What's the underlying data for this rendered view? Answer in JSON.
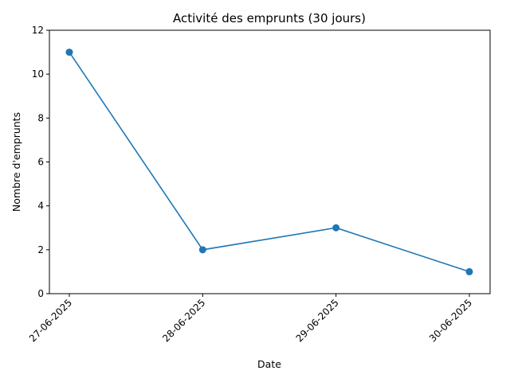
{
  "chart_data": {
    "type": "line",
    "title": "Activité des emprunts (30 jours)",
    "xlabel": "Date",
    "ylabel": "Nombre d'emprunts",
    "categories": [
      "27-06-2025",
      "28-06-2025",
      "29-06-2025",
      "30-06-2025"
    ],
    "series": [
      {
        "values": [
          11,
          2,
          3,
          1
        ],
        "color": "#1f77b4"
      }
    ],
    "ylim": [
      0,
      12
    ],
    "yticks": [
      0,
      2,
      4,
      6,
      8,
      10,
      12
    ],
    "grid": false,
    "legend": "none"
  }
}
